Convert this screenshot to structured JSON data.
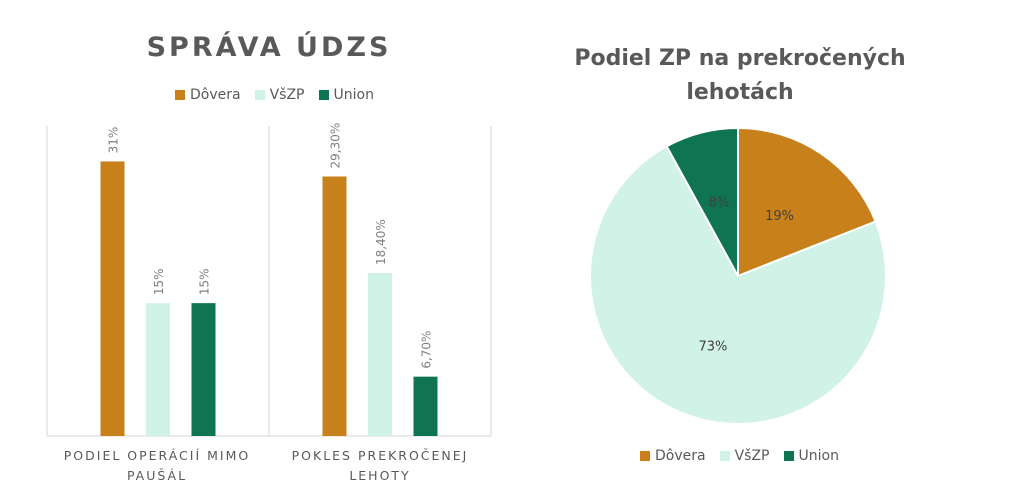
{
  "chart_data": [
    {
      "type": "bar",
      "title": "SPRÁVA ÚDZS",
      "categories": [
        "PODIEL OPERÁCIÍ MIMO PAUŠÁL",
        "POKLES PREKROČENEJ LEHOTY"
      ],
      "series": [
        {
          "name": "Dôvera",
          "color": "#C8801A",
          "values": [
            31,
            29.3
          ],
          "labels": [
            "31%",
            "29,30%"
          ]
        },
        {
          "name": "VšZP",
          "color": "#D1F2E6",
          "values": [
            15,
            18.4
          ],
          "labels": [
            "15%",
            "18,40%"
          ]
        },
        {
          "name": "Union",
          "color": "#0E7452",
          "values": [
            15,
            6.7
          ],
          "labels": [
            "15%",
            "6,70%"
          ]
        }
      ],
      "ylim": [
        0,
        35
      ],
      "legend": "top",
      "grid": false
    },
    {
      "type": "pie",
      "title": "Podiel ZP na prekročených lehotách",
      "slices": [
        {
          "name": "Dôvera",
          "value": 19,
          "label": "19%",
          "color": "#C8801A"
        },
        {
          "name": "VšZP",
          "value": 73,
          "label": "73%",
          "color": "#D1F2E6"
        },
        {
          "name": "Union",
          "value": 8,
          "label": "8%",
          "color": "#0E7452"
        }
      ],
      "legend": "bottom"
    }
  ]
}
